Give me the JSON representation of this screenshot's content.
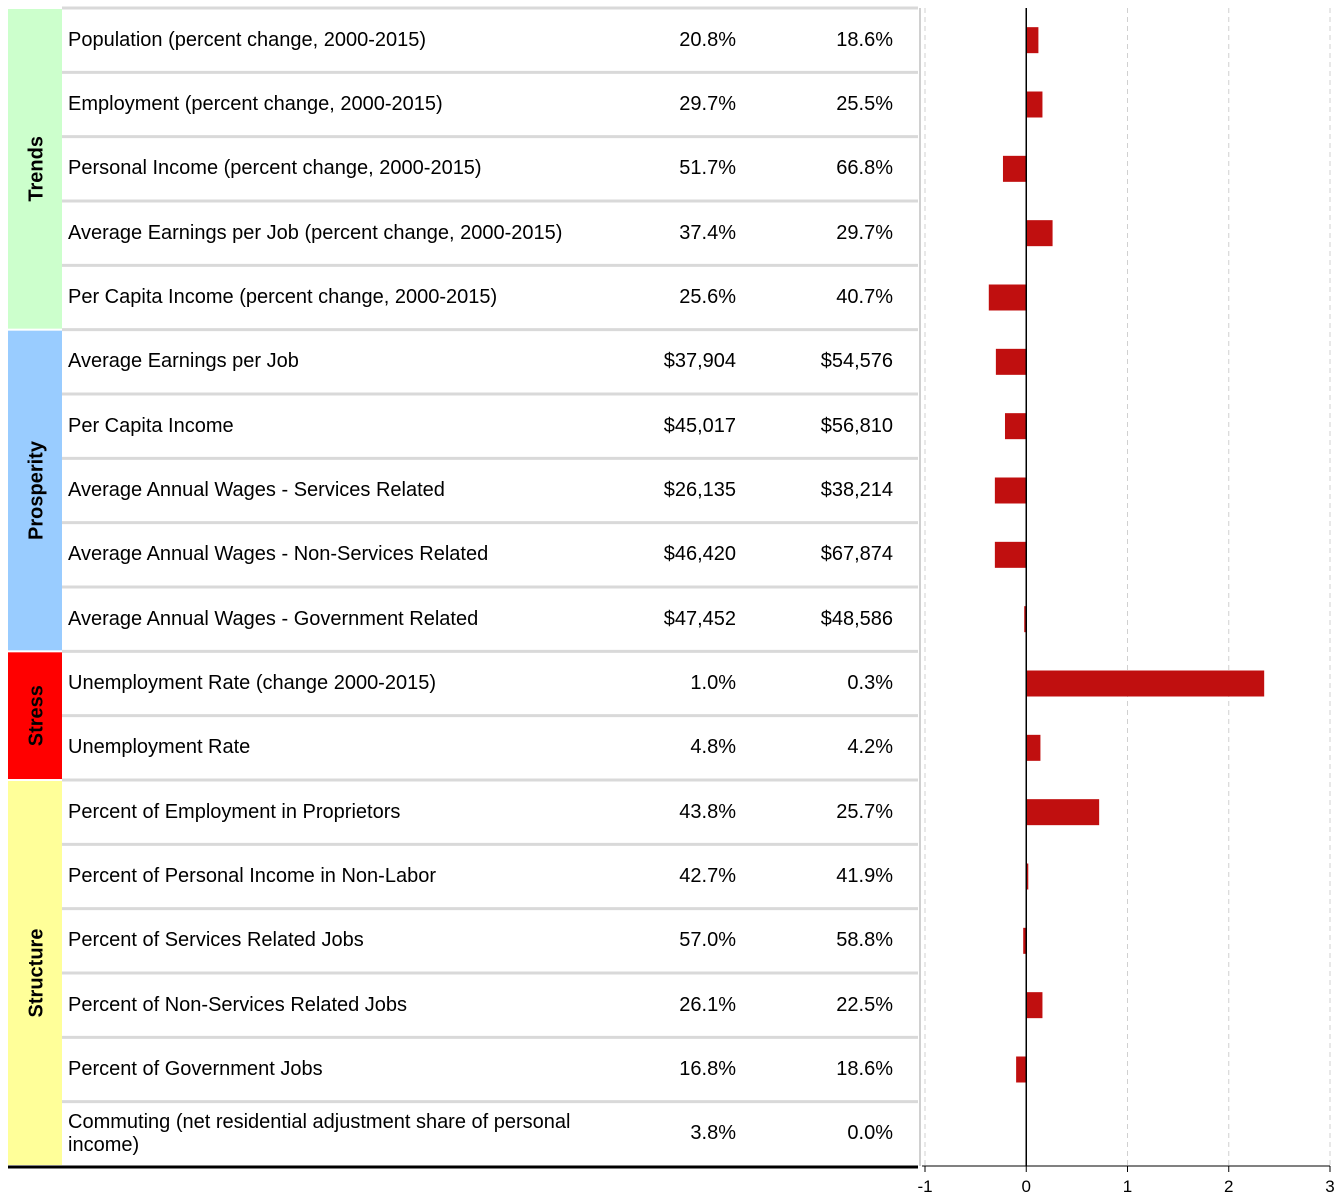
{
  "table": {
    "groups": [
      {
        "name": "Trends",
        "color": "#ccffcc",
        "rows": [
          {
            "label": "Population (percent change, 2000-2015)",
            "v1": "20.8%",
            "v2": "18.6%"
          },
          {
            "label": "Employment (percent change, 2000-2015)",
            "v1": "29.7%",
            "v2": "25.5%"
          },
          {
            "label": "Personal Income (percent change, 2000-2015)",
            "v1": "51.7%",
            "v2": "66.8%"
          },
          {
            "label": "Average Earnings per Job (percent change, 2000-2015)",
            "v1": "37.4%",
            "v2": "29.7%"
          },
          {
            "label": "Per Capita Income (percent change, 2000-2015)",
            "v1": "25.6%",
            "v2": "40.7%"
          }
        ]
      },
      {
        "name": "Prosperity",
        "color": "#99ccff",
        "rows": [
          {
            "label": "Average Earnings per Job",
            "v1": "$37,904",
            "v2": "$54,576"
          },
          {
            "label": "Per Capita Income",
            "v1": "$45,017",
            "v2": "$56,810"
          },
          {
            "label": "Average Annual Wages - Services Related",
            "v1": "$26,135",
            "v2": "$38,214"
          },
          {
            "label": "Average Annual Wages - Non-Services Related",
            "v1": "$46,420",
            "v2": "$67,874"
          },
          {
            "label": "Average Annual Wages - Government Related",
            "v1": "$47,452",
            "v2": "$48,586"
          }
        ]
      },
      {
        "name": "Stress",
        "color": "#ff0000",
        "rows": [
          {
            "label": "Unemployment Rate (change 2000-2015)",
            "v1": "1.0%",
            "v2": "0.3%"
          },
          {
            "label": "Unemployment Rate",
            "v1": "4.8%",
            "v2": "4.2%"
          }
        ]
      },
      {
        "name": "Structure",
        "color": "#ffff99",
        "rows": [
          {
            "label": "Percent of Employment in Proprietors",
            "v1": "43.8%",
            "v2": "25.7%"
          },
          {
            "label": "Percent of Personal Income in Non-Labor",
            "v1": "42.7%",
            "v2": "41.9%"
          },
          {
            "label": "Percent of Services Related Jobs",
            "v1": "57.0%",
            "v2": "58.8%"
          },
          {
            "label": "Percent of Non-Services Related Jobs",
            "v1": "26.1%",
            "v2": "22.5%"
          },
          {
            "label": "Percent of Government Jobs",
            "v1": "16.8%",
            "v2": "18.6%"
          },
          {
            "label": "Commuting (net residential adjustment share of personal income)",
            "v1": "3.8%",
            "v2": "0.0%"
          }
        ]
      }
    ]
  },
  "chart_data": {
    "type": "bar",
    "orientation": "horizontal",
    "color": "#c00f0f",
    "values": [
      0.12,
      0.16,
      -0.23,
      0.26,
      -0.37,
      -0.3,
      -0.21,
      -0.31,
      -0.31,
      -0.02,
      2.35,
      0.14,
      0.72,
      0.02,
      -0.03,
      0.16,
      -0.1,
      null
    ],
    "xlim": [
      -1,
      3
    ],
    "xticks": [
      -1,
      0,
      1,
      2,
      3
    ],
    "grid": true
  }
}
